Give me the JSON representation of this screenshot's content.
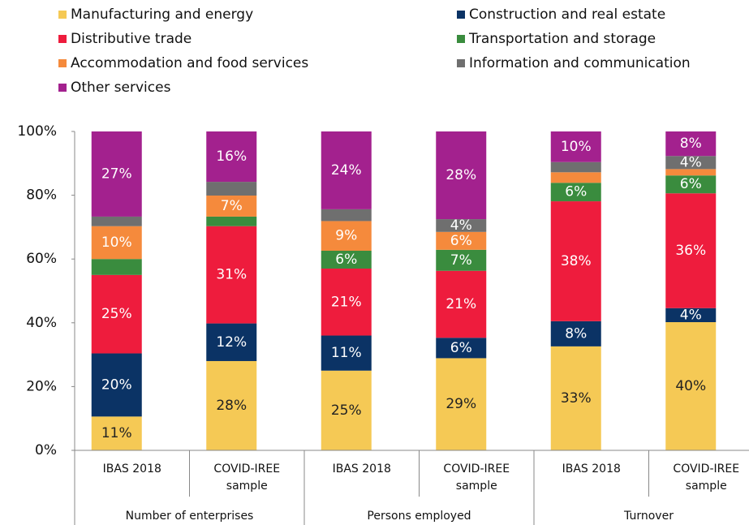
{
  "chart_data": {
    "type": "stacked_bar",
    "categories": [
      "IBAS 2018",
      "COVID-IREE sample",
      "IBAS 2018",
      "COVID-IREE sample",
      "IBAS 2018",
      "COVID-IREE sample"
    ],
    "groups": [
      "Number of enterprises",
      "Persons employed",
      "Turnover"
    ],
    "series": [
      {
        "name": "Manufacturing and energy",
        "color": "#f5c955",
        "label_color": "#222222",
        "values": [
          10.6,
          28,
          25,
          28.9,
          32.6,
          40.2
        ],
        "value_labels": [
          "11%",
          "28%",
          "25%",
          "29%",
          "33%",
          "40%"
        ]
      },
      {
        "name": "Construction and real estate",
        "color": "#0b3365",
        "label_color": "#ffffff",
        "values": [
          19.8,
          11.8,
          11,
          6.4,
          7.9,
          4.4
        ],
        "value_labels": [
          "20%",
          "12%",
          "11%",
          "6%",
          "8%",
          "4%"
        ]
      },
      {
        "name": "Distributive trade",
        "color": "#ee1c3d",
        "label_color": "#ffffff",
        "values": [
          24.6,
          30.5,
          21,
          21,
          37.6,
          36
        ],
        "value_labels": [
          "25%",
          "31%",
          "21%",
          "21%",
          "38%",
          "36%"
        ]
      },
      {
        "name": "Transportation and storage",
        "color": "#3a8c3e",
        "label_color": "#ffffff",
        "values": [
          5,
          3,
          5.6,
          6.6,
          5.8,
          5.6
        ],
        "value_labels": [
          null,
          null,
          "6%",
          "7%",
          "6%",
          "6%"
        ]
      },
      {
        "name": "Accommodation and food services",
        "color": "#f58a3c",
        "label_color": "#ffffff",
        "values": [
          10.3,
          6.6,
          9.3,
          5.6,
          3.3,
          2
        ],
        "value_labels": [
          "10%",
          "7%",
          "9%",
          "6%",
          null,
          null
        ]
      },
      {
        "name": "Information and communication",
        "color": "#6f6f6f",
        "label_color": "#ffffff",
        "values": [
          3,
          4.3,
          3.7,
          4,
          3.2,
          4.1
        ],
        "value_labels": [
          null,
          null,
          null,
          "4%",
          null,
          "4%"
        ]
      },
      {
        "name": "Other services",
        "color": "#a3218e",
        "label_color": "#ffffff",
        "values": [
          26.7,
          15.8,
          24.4,
          27.5,
          9.6,
          7.7
        ],
        "value_labels": [
          "27%",
          "16%",
          "24%",
          "28%",
          "10%",
          "8%"
        ]
      }
    ],
    "ylim": [
      0,
      100
    ],
    "yticks": [
      {
        "value": 0,
        "label": "0%"
      },
      {
        "value": 20,
        "label": "20%"
      },
      {
        "value": 40,
        "label": "40%"
      },
      {
        "value": 60,
        "label": "60%"
      },
      {
        "value": 80,
        "label": "80%"
      },
      {
        "value": 100,
        "label": "100%"
      }
    ],
    "grid": false,
    "legend": "top"
  }
}
